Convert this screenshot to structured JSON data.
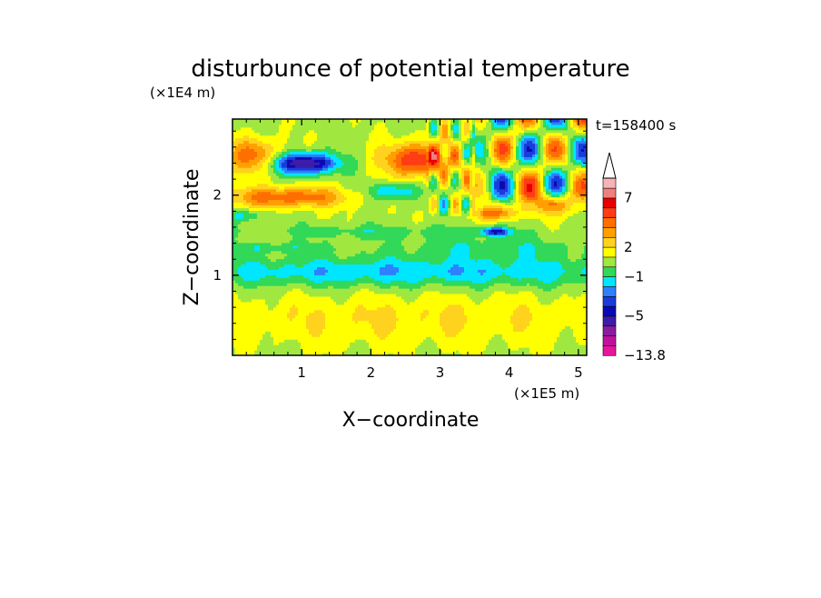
{
  "chart_data": {
    "type": "heatmap",
    "title": "disturbunce of potential temperature",
    "xlabel": "X−coordinate",
    "ylabel": "Z−coordinate",
    "x_unit": "(×1E5 m)",
    "y_unit": "(×1E4 m)",
    "time_label": "t=158400 s",
    "xlim": [
      0,
      5.12
    ],
    "ylim": [
      0,
      2.95
    ],
    "x_ticks": [
      "1",
      "2",
      "3",
      "4",
      "5"
    ],
    "y_ticks": [
      "1",
      "2"
    ],
    "x_tick_values": [
      1,
      2,
      3,
      4,
      5
    ],
    "y_tick_values": [
      1,
      2
    ],
    "colorbar": {
      "labels": [
        "7",
        "2",
        "−1",
        "−5",
        "−13.8"
      ],
      "label_values": [
        7,
        2,
        -1,
        -5,
        -13.8
      ],
      "levels": [
        -13.8,
        -11,
        -9,
        -7,
        -5,
        -4,
        -3,
        -2,
        -1,
        0,
        1,
        2,
        3,
        4,
        5,
        6,
        7,
        8,
        10
      ],
      "colors": [
        "#e8149b",
        "#c0109e",
        "#8a1ca0",
        "#3c1ca8",
        "#0a0ab4",
        "#1a3cdc",
        "#2e80ff",
        "#00e6ff",
        "#32d858",
        "#a0e840",
        "#ffff00",
        "#ffd21e",
        "#ffa000",
        "#ff6e00",
        "#ff3c14",
        "#e60000",
        "#f08080",
        "#f8b4b4"
      ]
    },
    "grid": "off",
    "legend": "right"
  }
}
